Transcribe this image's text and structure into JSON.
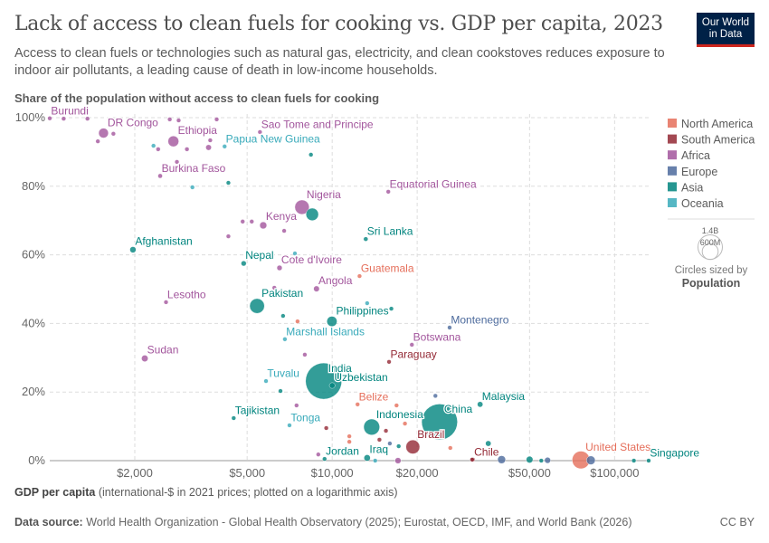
{
  "title": "Lack of access to clean fuels for cooking vs. GDP per capita, 2023",
  "subtitle": "Access to clean fuels or technologies such as natural gas, electricity, and clean cookstoves reduces exposure to indoor air pollutants, a leading cause of death in low-income households.",
  "logo": {
    "line1": "Our World",
    "line2": "in Data"
  },
  "footer": {
    "source_label": "Data source:",
    "source": "World Health Organization - Global Health Observatory (2025); Eurostat, OECD, IMF, and World Bank (2026)",
    "license": "CC BY"
  },
  "chart_data": {
    "type": "scatter",
    "title": "Lack of access to clean fuels for cooking vs. GDP per capita, 2023",
    "ylabel": "Share of the population without access to clean fuels for cooking",
    "xlabel_bold": "GDP per capita",
    "xlabel_rest": " (international-$ in 2021 prices; plotted on a logarithmic axis)",
    "xscale": "log",
    "xlim": [
      1000,
      133000
    ],
    "ylim": [
      0,
      100
    ],
    "xticks": [
      {
        "v": 2000,
        "label": "$2,000"
      },
      {
        "v": 5000,
        "label": "$5,000"
      },
      {
        "v": 10000,
        "label": "$10,000"
      },
      {
        "v": 20000,
        "label": "$20,000"
      },
      {
        "v": 50000,
        "label": "$50,000"
      },
      {
        "v": 100000,
        "label": "$100,000"
      }
    ],
    "yticks": [
      {
        "v": 0,
        "label": "0%"
      },
      {
        "v": 20,
        "label": "20%"
      },
      {
        "v": 40,
        "label": "40%"
      },
      {
        "v": 60,
        "label": "60%"
      },
      {
        "v": 80,
        "label": "80%"
      },
      {
        "v": 100,
        "label": "100%"
      }
    ],
    "grid": true,
    "legend_position": "right",
    "continents": [
      {
        "name": "North America",
        "color": "#E56E5A"
      },
      {
        "name": "South America",
        "color": "#932834"
      },
      {
        "name": "Africa",
        "color": "#A2559C"
      },
      {
        "name": "Europe",
        "color": "#4C6A9C"
      },
      {
        "name": "Asia",
        "color": "#00847E"
      },
      {
        "name": "Oceania",
        "color": "#38AABA"
      }
    ],
    "size_legend": {
      "title": "Circles sized by",
      "variable": "Population",
      "large": "1.4B",
      "small": "600M"
    },
    "points": [
      {
        "label": "Burundi",
        "c": "Africa",
        "gdp": 1000,
        "y": 99.8,
        "pop": 14
      },
      {
        "label": "DR Congo",
        "c": "Africa",
        "gdp": 1550,
        "y": 95.5,
        "pop": 105
      },
      {
        "label": "Ethiopia",
        "c": "Africa",
        "gdp": 2740,
        "y": 93.1,
        "pop": 128
      },
      {
        "label": "Sao Tome and Principe",
        "c": "Africa",
        "gdp": 5550,
        "y": 95.8,
        "pop": 0.2
      },
      {
        "label": "Papua New Guinea",
        "c": "Oceania",
        "gdp": 4160,
        "y": 91.6,
        "pop": 10
      },
      {
        "label": "Burkina Faso",
        "c": "Africa",
        "gdp": 2460,
        "y": 83.0,
        "pop": 23
      },
      {
        "label": "Nigeria",
        "c": "Africa",
        "gdp": 7820,
        "y": 73.9,
        "pop": 228
      },
      {
        "label": "",
        "c": "Asia",
        "gdp": 8500,
        "y": 71.8,
        "pop": 172
      },
      {
        "label": "Equatorial Guinea",
        "c": "Africa",
        "gdp": 15800,
        "y": 78.4,
        "pop": 1.7
      },
      {
        "label": "Kenya",
        "c": "Africa",
        "gdp": 5700,
        "y": 68.6,
        "pop": 55
      },
      {
        "label": "Afghanistan",
        "c": "Asia",
        "gdp": 1970,
        "y": 61.5,
        "pop": 42
      },
      {
        "label": "Sri Lanka",
        "c": "Asia",
        "gdp": 13150,
        "y": 64.6,
        "pop": 22
      },
      {
        "label": "Nepal",
        "c": "Asia",
        "gdp": 4860,
        "y": 57.5,
        "pop": 30
      },
      {
        "label": "Cote d'Ivoire",
        "c": "Africa",
        "gdp": 6510,
        "y": 56.2,
        "pop": 31
      },
      {
        "label": "Guatemala",
        "c": "North America",
        "gdp": 12500,
        "y": 53.8,
        "pop": 18
      },
      {
        "label": "Angola",
        "c": "Africa",
        "gdp": 8800,
        "y": 50.1,
        "pop": 37
      },
      {
        "label": "Lesotho",
        "c": "Africa",
        "gdp": 2580,
        "y": 46.2,
        "pop": 2.3
      },
      {
        "label": "Pakistan",
        "c": "Asia",
        "gdp": 5420,
        "y": 45.1,
        "pop": 240
      },
      {
        "label": "Philippines",
        "c": "Asia",
        "gdp": 9980,
        "y": 40.6,
        "pop": 115
      },
      {
        "label": "Montenegro",
        "c": "Europe",
        "gdp": 26050,
        "y": 38.8,
        "pop": 0.6
      },
      {
        "label": "Marshall Islands",
        "c": "Oceania",
        "gdp": 6800,
        "y": 35.4,
        "pop": 0.04
      },
      {
        "label": "Botswana",
        "c": "Africa",
        "gdp": 19150,
        "y": 33.8,
        "pop": 2.7
      },
      {
        "label": "Paraguay",
        "c": "South America",
        "gdp": 15900,
        "y": 28.8,
        "pop": 6.9
      },
      {
        "label": "Sudan",
        "c": "Africa",
        "gdp": 2170,
        "y": 29.8,
        "pop": 48
      },
      {
        "label": "India",
        "c": "Asia",
        "gdp": 9330,
        "y": 23.2,
        "pop": 1440
      },
      {
        "label": "Uzbekistan",
        "c": "Asia",
        "gdp": 10000,
        "y": 21.9,
        "pop": 36
      },
      {
        "label": "Tuvalu",
        "c": "Oceania",
        "gdp": 5830,
        "y": 23.2,
        "pop": 0.01
      },
      {
        "label": "Belize",
        "c": "North America",
        "gdp": 12300,
        "y": 16.4,
        "pop": 0.4
      },
      {
        "label": "China",
        "c": "Asia",
        "gdp": 24000,
        "y": 11.3,
        "pop": 1410
      },
      {
        "label": "Malaysia",
        "c": "Asia",
        "gdp": 33400,
        "y": 16.4,
        "pop": 34
      },
      {
        "label": "Indonesia",
        "c": "Asia",
        "gdp": 13800,
        "y": 9.8,
        "pop": 280
      },
      {
        "label": "Tajikistan",
        "c": "Asia",
        "gdp": 4480,
        "y": 12.4,
        "pop": 10
      },
      {
        "label": "Tonga",
        "c": "Oceania",
        "gdp": 7060,
        "y": 10.3,
        "pop": 0.1
      },
      {
        "label": "Brazil",
        "c": "South America",
        "gdp": 19300,
        "y": 4.0,
        "pop": 211
      },
      {
        "label": "Jordan",
        "c": "Asia",
        "gdp": 9400,
        "y": 0.5,
        "pop": 11
      },
      {
        "label": "Iraq",
        "c": "Asia",
        "gdp": 13300,
        "y": 0.8,
        "pop": 45
      },
      {
        "label": "Chile",
        "c": "South America",
        "gdp": 31500,
        "y": 0.3,
        "pop": 19.6
      },
      {
        "label": "United States",
        "c": "North America",
        "gdp": 76000,
        "y": 0.2,
        "pop": 340
      },
      {
        "label": "Singapore",
        "c": "Asia",
        "gdp": 132000,
        "y": 0,
        "pop": 6
      },
      {
        "label": "",
        "c": "Africa",
        "gdp": 1120,
        "y": 99.7,
        "pop": 5
      },
      {
        "label": "",
        "c": "Africa",
        "gdp": 1360,
        "y": 99.7,
        "pop": 5
      },
      {
        "label": "",
        "c": "Africa",
        "gdp": 1480,
        "y": 93.1,
        "pop": 20
      },
      {
        "label": "",
        "c": "Africa",
        "gdp": 1680,
        "y": 95.3,
        "pop": 20
      },
      {
        "label": "",
        "c": "Africa",
        "gdp": 2660,
        "y": 99.5,
        "pop": 14
      },
      {
        "label": "",
        "c": "Africa",
        "gdp": 2860,
        "y": 99.2,
        "pop": 14
      },
      {
        "label": "",
        "c": "Africa",
        "gdp": 3900,
        "y": 99.5,
        "pop": 5
      },
      {
        "label": "",
        "c": "Africa",
        "gdp": 3700,
        "y": 93.4,
        "pop": 5
      },
      {
        "label": "",
        "c": "Africa",
        "gdp": 2420,
        "y": 90.8,
        "pop": 8
      },
      {
        "label": "",
        "c": "Africa",
        "gdp": 3060,
        "y": 90.8,
        "pop": 8
      },
      {
        "label": "",
        "c": "Africa",
        "gdp": 3650,
        "y": 91.3,
        "pop": 35
      },
      {
        "label": "",
        "c": "Africa",
        "gdp": 2820,
        "y": 87.1,
        "pop": 6
      },
      {
        "label": "",
        "c": "Africa",
        "gdp": 4290,
        "y": 65.4,
        "pop": 3
      },
      {
        "label": "",
        "c": "Africa",
        "gdp": 4820,
        "y": 69.7,
        "pop": 10
      },
      {
        "label": "",
        "c": "Africa",
        "gdp": 5190,
        "y": 69.7,
        "pop": 6
      },
      {
        "label": "",
        "c": "Africa",
        "gdp": 6760,
        "y": 67.0,
        "pop": 12
      },
      {
        "label": "",
        "c": "Africa",
        "gdp": 6240,
        "y": 50.4,
        "pop": 3
      },
      {
        "label": "",
        "c": "Africa",
        "gdp": 8000,
        "y": 30.9,
        "pop": 3
      },
      {
        "label": "",
        "c": "Africa",
        "gdp": 7480,
        "y": 16.1,
        "pop": 3
      },
      {
        "label": "",
        "c": "Africa",
        "gdp": 8930,
        "y": 1.8,
        "pop": 20
      },
      {
        "label": "",
        "c": "Africa",
        "gdp": 17100,
        "y": 0,
        "pop": 40
      },
      {
        "label": "",
        "c": "Oceania",
        "gdp": 2330,
        "y": 91.8,
        "pop": 0.7
      },
      {
        "label": "",
        "c": "Oceania",
        "gdp": 3200,
        "y": 79.7,
        "pop": 0.1
      },
      {
        "label": "",
        "c": "Oceania",
        "gdp": 7380,
        "y": 60.4,
        "pop": 0.3
      },
      {
        "label": "",
        "c": "Oceania",
        "gdp": 13300,
        "y": 45.9,
        "pop": 0.9
      },
      {
        "label": "",
        "c": "Oceania",
        "gdp": 14200,
        "y": 0,
        "pop": 1
      },
      {
        "label": "",
        "c": "Asia",
        "gdp": 4290,
        "y": 81.0,
        "pop": 1.3
      },
      {
        "label": "",
        "c": "Asia",
        "gdp": 8410,
        "y": 89.2,
        "pop": 3
      },
      {
        "label": "",
        "c": "Asia",
        "gdp": 6700,
        "y": 42.2,
        "pop": 7
      },
      {
        "label": "",
        "c": "Asia",
        "gdp": 6560,
        "y": 20.3,
        "pop": 3
      },
      {
        "label": "",
        "c": "Asia",
        "gdp": 16200,
        "y": 44.3,
        "pop": 0.5
      },
      {
        "label": "",
        "c": "Asia",
        "gdp": 35700,
        "y": 5.0,
        "pop": 34
      },
      {
        "label": "",
        "c": "Asia",
        "gdp": 50000,
        "y": 0.3,
        "pop": 50
      },
      {
        "label": "",
        "c": "Asia",
        "gdp": 17200,
        "y": 4.2,
        "pop": 3
      },
      {
        "label": "",
        "c": "Asia",
        "gdp": 55000,
        "y": 0,
        "pop": 10
      },
      {
        "label": "",
        "c": "Asia",
        "gdp": 117000,
        "y": 0,
        "pop": 3
      },
      {
        "label": "",
        "c": "South America",
        "gdp": 9530,
        "y": 9.5,
        "pop": 0.8
      },
      {
        "label": "",
        "c": "South America",
        "gdp": 15500,
        "y": 8.7,
        "pop": 18
      },
      {
        "label": "",
        "c": "South America",
        "gdp": 14700,
        "y": 6.1,
        "pop": 12
      },
      {
        "label": "",
        "c": "South America",
        "gdp": 31300,
        "y": 0.3,
        "pop": 3
      },
      {
        "label": "",
        "c": "North America",
        "gdp": 7540,
        "y": 40.6,
        "pop": 11
      },
      {
        "label": "",
        "c": "North America",
        "gdp": 11500,
        "y": 7.1,
        "pop": 6
      },
      {
        "label": "",
        "c": "North America",
        "gdp": 11500,
        "y": 5.5,
        "pop": 6
      },
      {
        "label": "",
        "c": "North America",
        "gdp": 16900,
        "y": 16.1,
        "pop": 10
      },
      {
        "label": "",
        "c": "North America",
        "gdp": 18100,
        "y": 10.8,
        "pop": 11
      },
      {
        "label": "",
        "c": "North America",
        "gdp": 26200,
        "y": 3.7,
        "pop": 2
      },
      {
        "label": "",
        "c": "Europe",
        "gdp": 23200,
        "y": 18.9,
        "pop": 1
      },
      {
        "label": "",
        "c": "Europe",
        "gdp": 16000,
        "y": 5.0,
        "pop": 6
      },
      {
        "label": "",
        "c": "Europe",
        "gdp": 39800,
        "y": 0.3,
        "pop": 70
      },
      {
        "label": "",
        "c": "Europe",
        "gdp": 57900,
        "y": 0.1,
        "pop": 40
      },
      {
        "label": "",
        "c": "Europe",
        "gdp": 82400,
        "y": 0.1,
        "pop": 84
      }
    ]
  }
}
